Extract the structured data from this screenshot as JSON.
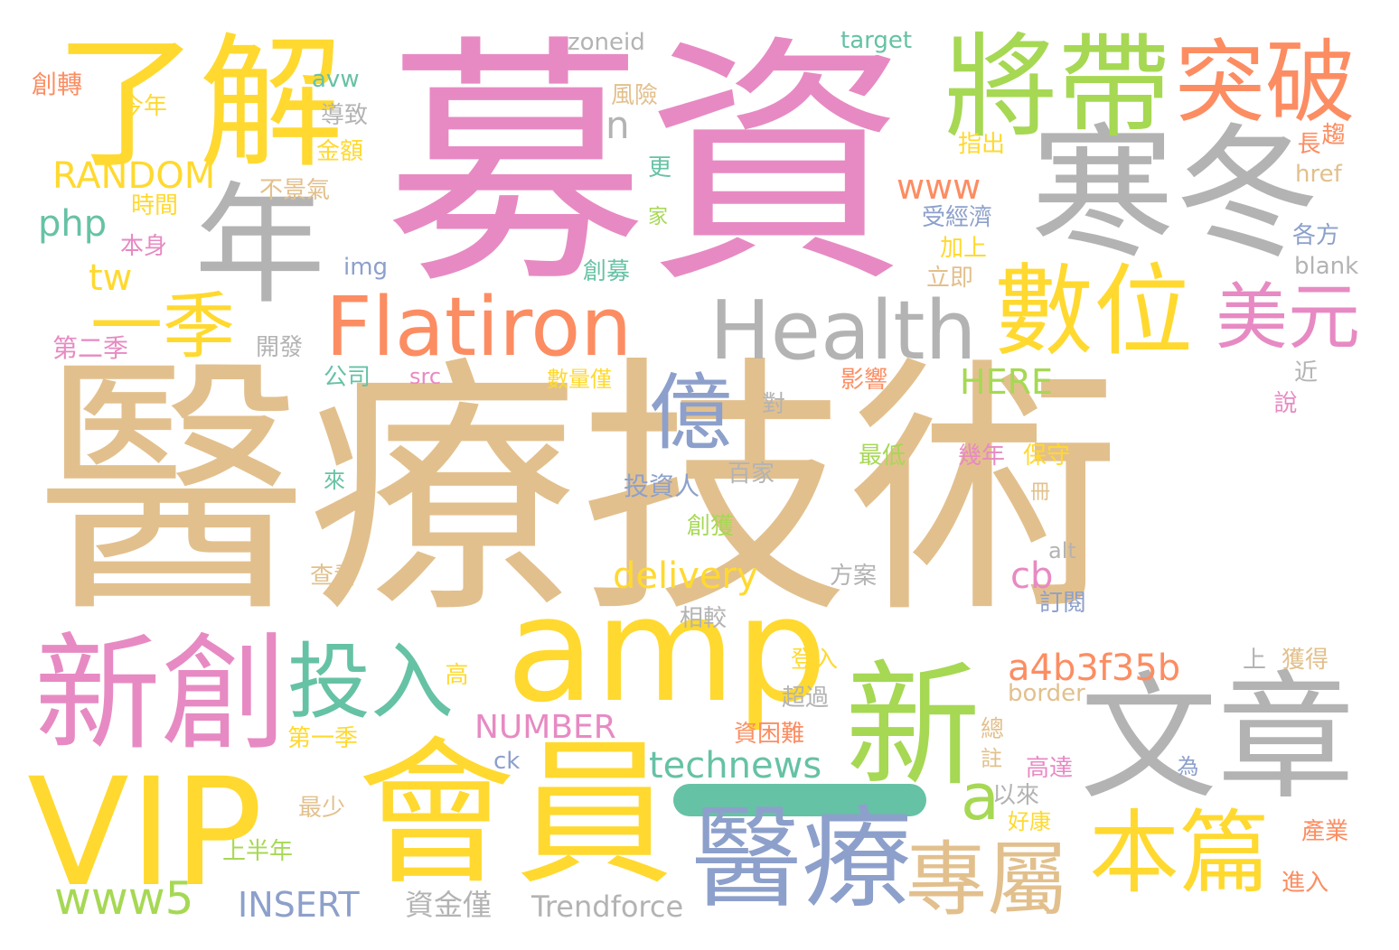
{
  "palette": {
    "tan": "#e2c08d",
    "pink": "#e78ac3",
    "gray": "#b3b3b3",
    "yellow": "#ffd92f",
    "green": "#a6d854",
    "orange": "#fc8d62",
    "blue": "#8da0cb",
    "teal": "#66c2a5"
  },
  "words": [
    "醫療技術",
    "募資",
    "寒冬",
    "了解",
    "將帶",
    "突破",
    "年",
    "一季",
    "數位",
    "美元",
    "Flatiron",
    "Health",
    "億",
    "amp",
    "新創",
    "投入",
    "新",
    "文章",
    "VIP",
    "會員",
    "醫療",
    "專屬",
    "本篇",
    "a",
    "www5",
    "INSERT",
    "資金僅",
    "Trendforce",
    "technews",
    "NUMBER",
    "delivery",
    "a4b3f35b",
    "cb",
    "HERE",
    "www",
    "RANDOM",
    "php",
    "tw",
    "n",
    "zoneid",
    "target",
    "avw",
    "創轉",
    "今年",
    "導致",
    "風險",
    "趨",
    "長",
    "指出",
    "金額",
    "不景氣",
    "時間",
    "本身",
    "更",
    "家",
    "受經濟",
    "加上",
    "立即",
    "各方",
    "blank",
    "href",
    "img",
    "創募",
    "第二季",
    "開發",
    "公司",
    "src",
    "數量僅",
    "影響",
    "近",
    "對",
    "說",
    "來",
    "最低",
    "幾年",
    "保守",
    "百家",
    "投資人",
    "冊",
    "創獲",
    "alt",
    "查看",
    "方案",
    "相較",
    "訂閱",
    "高",
    "登入",
    "上",
    "獲得",
    "超過",
    "border",
    "第一季",
    "資困難",
    "總",
    "ck",
    "註",
    "為",
    "高達",
    "最少",
    "以來",
    "好康",
    "上半年",
    "產業",
    "進入"
  ]
}
